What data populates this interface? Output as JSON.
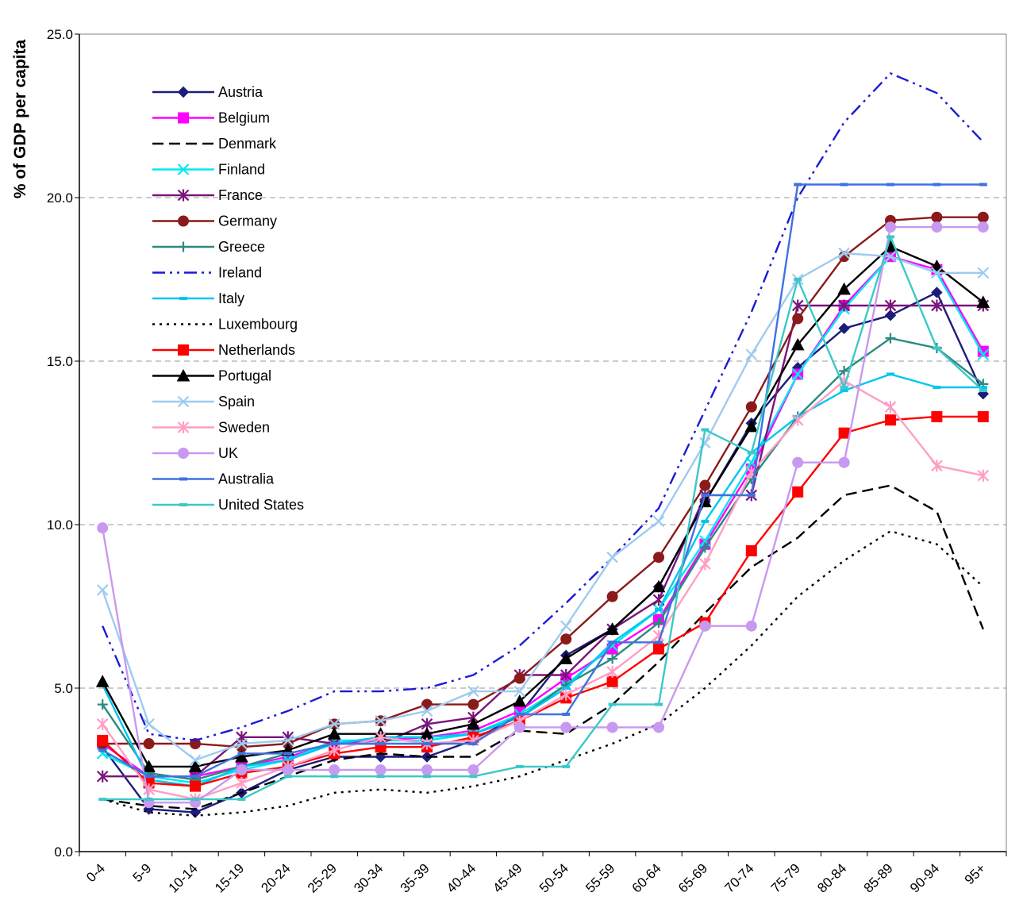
{
  "chart_data": {
    "type": "line",
    "title": "",
    "xlabel": "",
    "ylabel": "% of GDP per capita",
    "ylim": [
      0,
      25
    ],
    "yticks": [
      "0.0",
      "5.0",
      "10.0",
      "15.0",
      "20.0",
      "25.0"
    ],
    "grid": "horizontal dashed",
    "legend_position": "top-left",
    "categories": [
      "0-4",
      "5-9",
      "10-14",
      "15-19",
      "20-24",
      "25-29",
      "30-34",
      "35-39",
      "40-44",
      "45-49",
      "50-54",
      "55-59",
      "60-64",
      "65-69",
      "70-74",
      "75-79",
      "80-84",
      "85-89",
      "90-94",
      "95+"
    ],
    "series": [
      {
        "name": "Austria",
        "color": "#1c1c7c",
        "dash": "",
        "marker": "diamond",
        "values": [
          3.2,
          1.3,
          1.2,
          1.8,
          2.5,
          2.9,
          2.9,
          2.9,
          3.4,
          4.2,
          6.0,
          6.8,
          8.1,
          10.7,
          13.1,
          14.8,
          16.0,
          16.4,
          17.1,
          14.0
        ]
      },
      {
        "name": "Belgium",
        "color": "#ff00ff",
        "dash": "",
        "marker": "square",
        "values": [
          3.3,
          2.3,
          2.3,
          2.6,
          2.9,
          3.3,
          3.4,
          3.5,
          3.7,
          4.3,
          5.3,
          6.2,
          7.1,
          9.4,
          11.7,
          14.6,
          16.7,
          18.2,
          17.8,
          15.3
        ]
      },
      {
        "name": "Denmark",
        "color": "#000000",
        "dash": "14,7",
        "marker": "none",
        "values": [
          1.6,
          1.4,
          1.3,
          1.8,
          2.3,
          2.8,
          3.0,
          2.9,
          2.9,
          3.7,
          3.6,
          4.5,
          5.8,
          7.3,
          8.7,
          9.6,
          10.9,
          11.2,
          10.4,
          6.8
        ]
      },
      {
        "name": "Finland",
        "color": "#00e8f0",
        "dash": "",
        "marker": "x",
        "values": [
          3.0,
          2.3,
          2.1,
          2.5,
          2.8,
          3.4,
          3.4,
          3.4,
          3.6,
          4.2,
          5.1,
          6.3,
          7.4,
          9.5,
          11.9,
          14.6,
          16.6,
          18.2,
          17.7,
          15.2
        ]
      },
      {
        "name": "France",
        "color": "#7a157a",
        "dash": "",
        "marker": "asterisk",
        "values": [
          2.3,
          2.3,
          2.3,
          3.5,
          3.5,
          3.3,
          3.3,
          3.9,
          4.1,
          5.4,
          5.4,
          6.8,
          7.7,
          10.9,
          10.9,
          16.7,
          16.7,
          16.7,
          16.7,
          16.7
        ]
      },
      {
        "name": "Germany",
        "color": "#8b1a1a",
        "dash": "",
        "marker": "circle",
        "values": [
          3.3,
          3.3,
          3.3,
          3.2,
          3.3,
          3.9,
          4.0,
          4.5,
          4.5,
          5.3,
          6.5,
          7.8,
          9.0,
          11.2,
          13.6,
          16.3,
          18.2,
          19.3,
          19.4,
          19.4
        ]
      },
      {
        "name": "Greece",
        "color": "#2a8a80",
        "dash": "",
        "marker": "plus",
        "values": [
          4.5,
          2.4,
          2.2,
          2.6,
          3.0,
          3.3,
          3.5,
          3.5,
          3.6,
          4.1,
          5.1,
          5.9,
          7.0,
          9.3,
          11.4,
          13.3,
          14.7,
          15.7,
          15.4,
          14.3
        ]
      },
      {
        "name": "Ireland",
        "color": "#1a1ad8",
        "dash": "16,6,3,6,3,6",
        "marker": "none",
        "values": [
          6.9,
          3.6,
          3.4,
          3.8,
          4.3,
          4.9,
          4.9,
          5.0,
          5.4,
          6.3,
          7.6,
          9.0,
          10.5,
          13.5,
          16.5,
          20.0,
          22.3,
          23.8,
          23.2,
          21.7
        ]
      },
      {
        "name": "Italy",
        "color": "#00c6f0",
        "dash": "",
        "marker": "dash",
        "values": [
          5.1,
          2.2,
          2.0,
          2.6,
          2.8,
          3.3,
          3.5,
          3.5,
          3.6,
          4.1,
          5.0,
          6.4,
          7.4,
          10.1,
          12.2,
          13.3,
          14.1,
          14.6,
          14.2,
          14.2
        ]
      },
      {
        "name": "Luxembourg",
        "color": "#000000",
        "dash": "3,6",
        "marker": "none",
        "values": [
          1.6,
          1.2,
          1.1,
          1.2,
          1.4,
          1.8,
          1.9,
          1.8,
          2.0,
          2.3,
          2.8,
          3.3,
          3.9,
          5.0,
          6.3,
          7.8,
          8.9,
          9.8,
          9.4,
          8.1
        ]
      },
      {
        "name": "Netherlands",
        "color": "#ff0000",
        "dash": "",
        "marker": "square",
        "values": [
          3.4,
          2.1,
          2.0,
          2.4,
          2.6,
          3.0,
          3.2,
          3.2,
          3.5,
          4.0,
          4.7,
          5.2,
          6.2,
          7.0,
          9.2,
          11.0,
          12.8,
          13.2,
          13.3,
          13.3
        ]
      },
      {
        "name": "Portugal",
        "color": "#000000",
        "dash": "",
        "marker": "triangle",
        "values": [
          5.2,
          2.6,
          2.6,
          2.9,
          3.1,
          3.6,
          3.6,
          3.6,
          3.9,
          4.6,
          5.9,
          6.8,
          8.1,
          10.7,
          13.0,
          15.5,
          17.2,
          18.5,
          17.9,
          16.8
        ]
      },
      {
        "name": "Spain",
        "color": "#9ecbf0",
        "dash": "",
        "marker": "x",
        "values": [
          8.0,
          3.9,
          2.8,
          3.3,
          3.4,
          3.9,
          4.0,
          4.3,
          4.9,
          4.9,
          6.9,
          9.0,
          10.1,
          12.5,
          15.2,
          17.5,
          18.3,
          18.2,
          17.7,
          17.7
        ]
      },
      {
        "name": "Sweden",
        "color": "#ff9ec5",
        "dash": "",
        "marker": "asterisk",
        "values": [
          3.9,
          1.9,
          1.6,
          2.1,
          2.6,
          3.1,
          3.5,
          3.3,
          3.4,
          4.0,
          4.8,
          5.5,
          6.6,
          8.8,
          11.6,
          13.2,
          14.4,
          13.6,
          11.8,
          11.5
        ]
      },
      {
        "name": "UK",
        "color": "#c899f0",
        "dash": "",
        "marker": "circle",
        "values": [
          9.9,
          1.5,
          1.5,
          2.5,
          2.5,
          2.5,
          2.5,
          2.5,
          2.5,
          3.8,
          3.8,
          3.8,
          3.8,
          6.9,
          6.9,
          11.9,
          11.9,
          19.1,
          19.1,
          19.1
        ]
      },
      {
        "name": "Australia",
        "color": "#3f72e0",
        "dash": "",
        "marker": "dash",
        "values": [
          3.1,
          2.3,
          2.3,
          3.0,
          3.0,
          3.3,
          3.3,
          3.3,
          3.3,
          4.2,
          4.2,
          6.4,
          6.4,
          10.9,
          10.9,
          20.4,
          20.4,
          20.4,
          20.4,
          20.4
        ]
      },
      {
        "name": "United States",
        "color": "#3cc8c8",
        "dash": "",
        "marker": "dash",
        "values": [
          1.6,
          1.6,
          1.6,
          1.6,
          2.3,
          2.3,
          2.3,
          2.3,
          2.3,
          2.6,
          2.6,
          4.5,
          4.5,
          12.9,
          12.2,
          17.5,
          14.2,
          18.8,
          15.4,
          14.1
        ]
      }
    ]
  }
}
